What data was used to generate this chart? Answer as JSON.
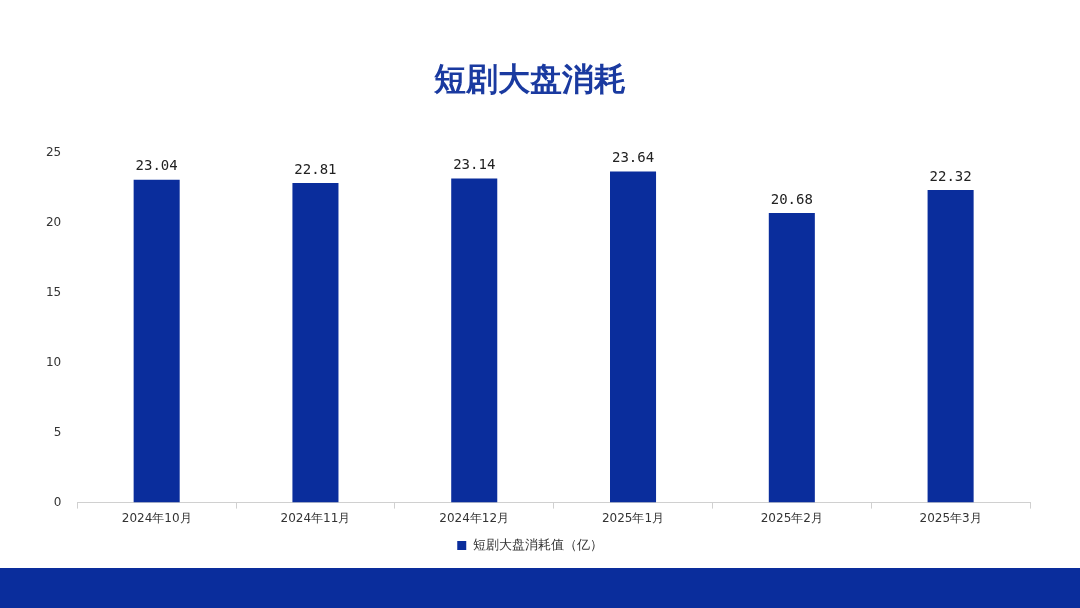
{
  "chart_data": {
    "type": "bar",
    "title": "短剧大盘消耗",
    "categories": [
      "2024年10月",
      "2024年11月",
      "2024年12月",
      "2025年1月",
      "2025年2月",
      "2025年3月"
    ],
    "series": [
      {
        "name": "短剧大盘消耗值（亿）",
        "color": "#0a2d9c",
        "values": [
          23.04,
          22.81,
          23.14,
          23.64,
          20.68,
          22.32
        ]
      }
    ],
    "ylim": [
      0,
      25
    ],
    "yticks": [
      0,
      5,
      10,
      15,
      20,
      25
    ],
    "grid": false,
    "legend": "bottom",
    "data_labels": true
  }
}
